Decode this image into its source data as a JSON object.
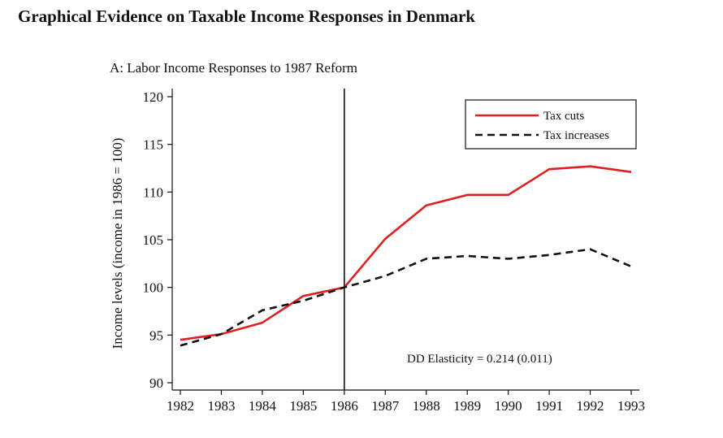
{
  "figure_title": "Graphical Evidence on Taxable Income Responses in Denmark",
  "chart_data": {
    "type": "line",
    "title": "A: Labor Income Responses to 1987 Reform",
    "xlabel": "",
    "ylabel": "Income levels (income in 1986 = 100)",
    "x": [
      1982,
      1983,
      1984,
      1985,
      1986,
      1987,
      1988,
      1989,
      1990,
      1991,
      1992,
      1993
    ],
    "ylim": [
      90,
      120
    ],
    "yticks": [
      90,
      95,
      100,
      105,
      110,
      115,
      120
    ],
    "reference_line_x": 1986,
    "series": [
      {
        "name": "Tax cuts",
        "color": "#e02020",
        "style": "solid",
        "values": [
          94.5,
          95.1,
          96.3,
          99.1,
          100.0,
          105.1,
          108.6,
          109.7,
          109.7,
          112.4,
          112.7,
          112.1
        ]
      },
      {
        "name": "Tax increases",
        "color": "#111111",
        "style": "dashed",
        "values": [
          93.9,
          95.1,
          97.6,
          98.6,
          100.0,
          101.2,
          103.0,
          103.3,
          103.0,
          103.4,
          104.0,
          102.2
        ]
      }
    ],
    "legend_position": "top-right",
    "annotation": "DD Elasticity = 0.214 (0.011)"
  }
}
